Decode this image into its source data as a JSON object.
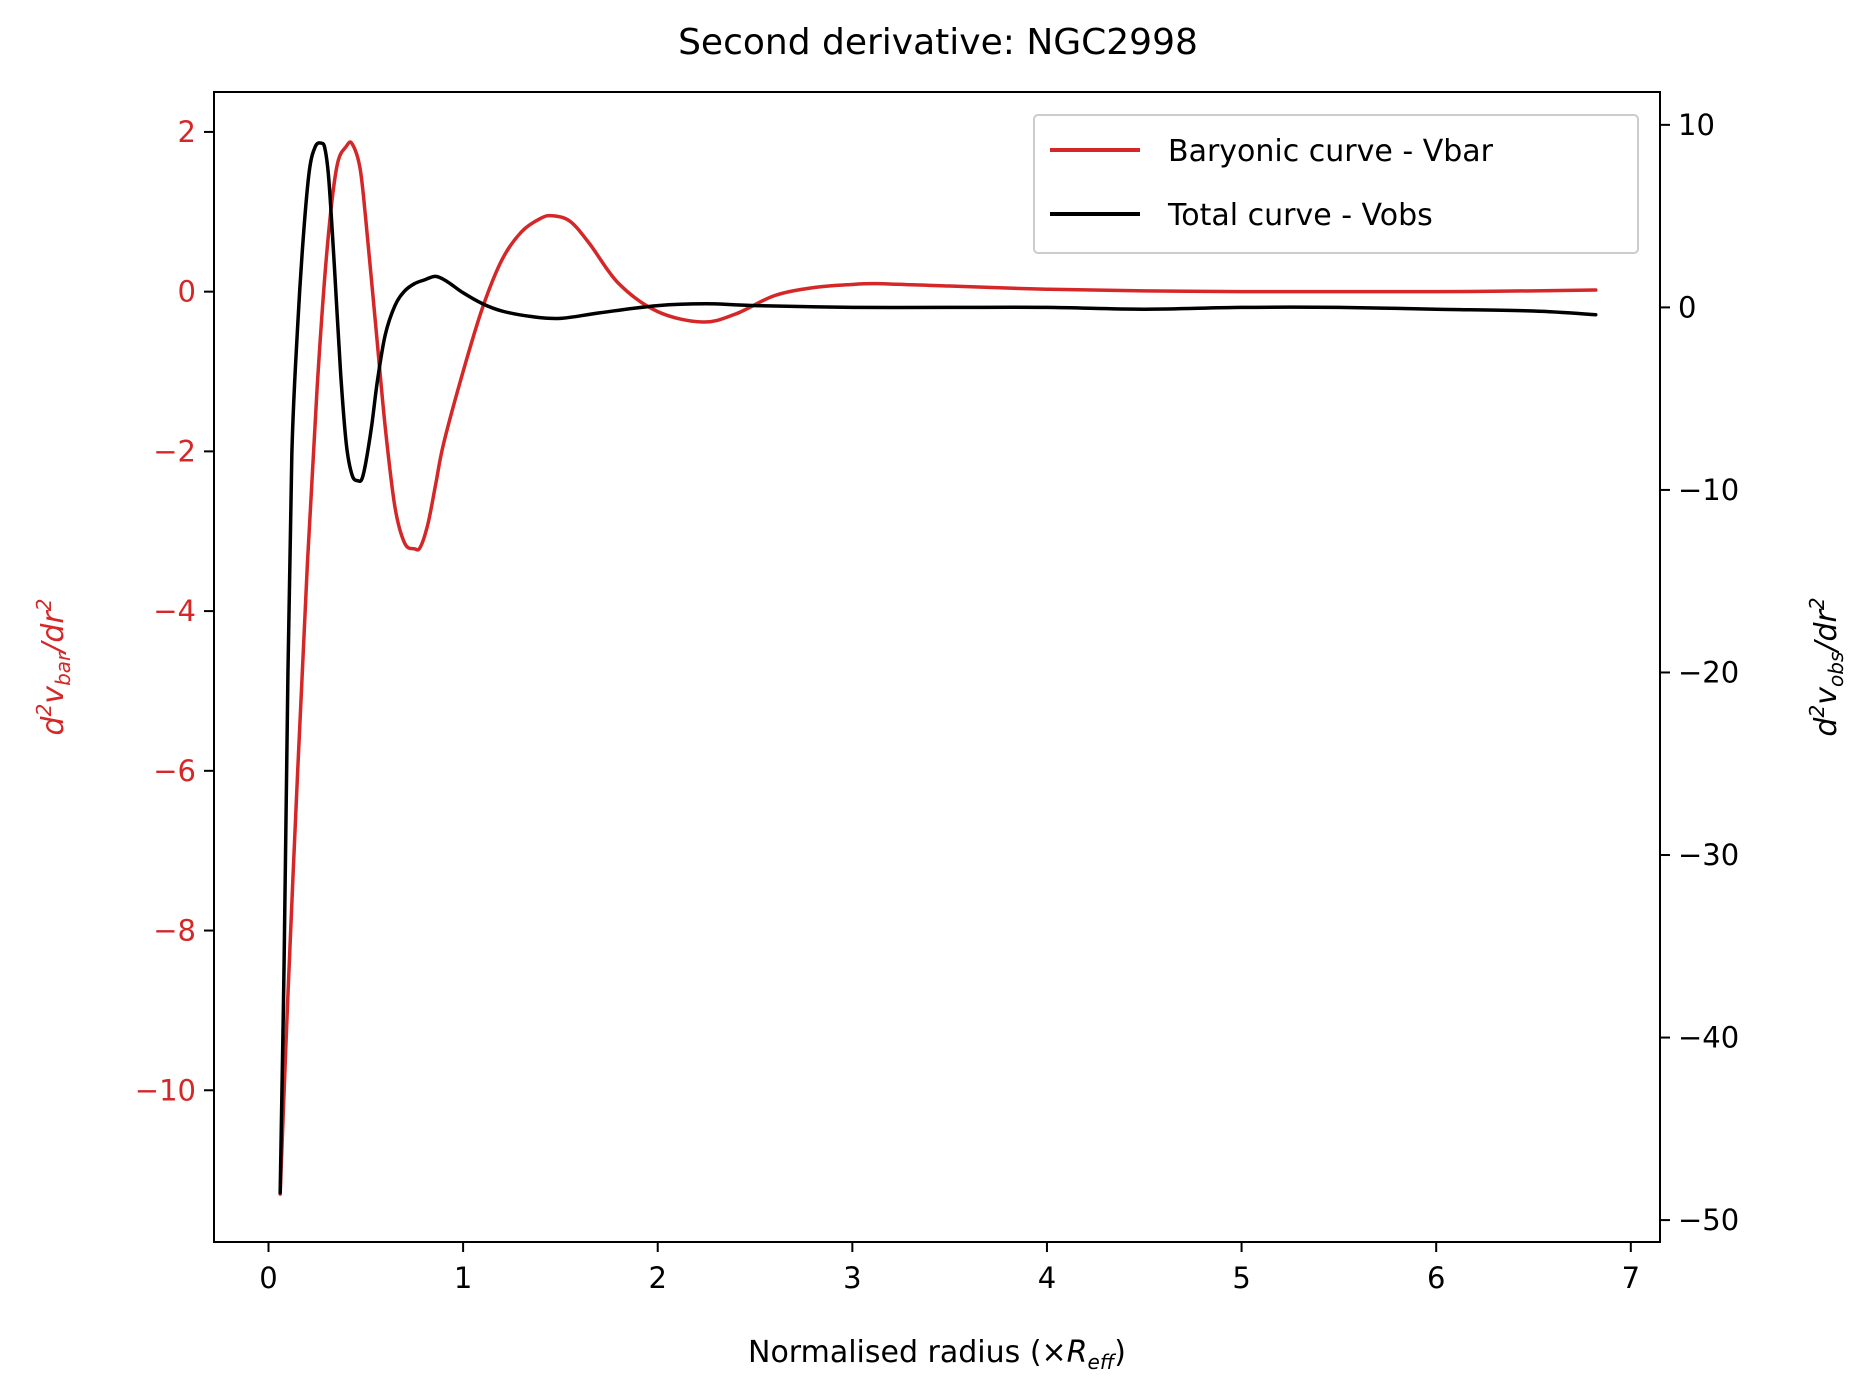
{
  "chart_data": {
    "type": "line",
    "title": "Second derivative: NGC2998",
    "xlabel": "Normalised radius (×R_eff)",
    "ylabel_left": "d²v_bar/dr²",
    "ylabel_right": "d²v_obs/dr²",
    "xlim": [
      -0.28,
      7.15
    ],
    "ylim_left": [
      -11.9,
      2.5
    ],
    "ylim_right": [
      -51.2,
      11.8
    ],
    "grid": false,
    "legend_position": "top-right",
    "x_ticks": [
      0,
      1,
      2,
      3,
      4,
      5,
      6,
      7
    ],
    "x_tick_labels": [
      "0",
      "1",
      "2",
      "3",
      "4",
      "5",
      "6",
      "7"
    ],
    "y_left_ticks": [
      2,
      0,
      -2,
      -4,
      -6,
      -8,
      -10
    ],
    "y_left_tick_labels": [
      "2",
      "0",
      "−2",
      "−4",
      "−6",
      "−8",
      "−10"
    ],
    "y_right_ticks": [
      10,
      0,
      -10,
      -20,
      -30,
      -40,
      -50
    ],
    "y_right_tick_labels": [
      "10",
      "0",
      "−10",
      "−20",
      "−30",
      "−40",
      "−50"
    ],
    "series": [
      {
        "name": "Baryonic curve - Vbar",
        "axis": "left",
        "color": "#d62728",
        "x": [
          0.06,
          0.1,
          0.15,
          0.2,
          0.25,
          0.3,
          0.35,
          0.4,
          0.43,
          0.47,
          0.5,
          0.55,
          0.6,
          0.65,
          0.7,
          0.75,
          0.78,
          0.82,
          0.86,
          0.9,
          1.0,
          1.1,
          1.2,
          1.3,
          1.4,
          1.46,
          1.55,
          1.65,
          1.8,
          2.0,
          2.23,
          2.4,
          2.6,
          2.8,
          3.0,
          3.13,
          3.5,
          4.0,
          4.5,
          5.0,
          5.5,
          6.0,
          6.5,
          6.82
        ],
        "y": [
          -11.3,
          -8.8,
          -6.0,
          -3.4,
          -1.2,
          0.5,
          1.55,
          1.82,
          1.85,
          1.55,
          0.9,
          -0.4,
          -1.7,
          -2.7,
          -3.15,
          -3.22,
          -3.2,
          -2.9,
          -2.4,
          -1.9,
          -1.0,
          -0.2,
          0.4,
          0.75,
          0.92,
          0.95,
          0.88,
          0.6,
          0.1,
          -0.25,
          -0.38,
          -0.28,
          -0.05,
          0.05,
          0.09,
          0.1,
          0.07,
          0.03,
          0.01,
          0.0,
          0.0,
          0.0,
          0.01,
          0.02
        ]
      },
      {
        "name": "Total curve - Vobs",
        "axis": "right",
        "color": "#000000",
        "x": [
          0.06,
          0.08,
          0.1,
          0.12,
          0.15,
          0.18,
          0.21,
          0.24,
          0.27,
          0.29,
          0.31,
          0.34,
          0.37,
          0.4,
          0.43,
          0.46,
          0.48,
          0.5,
          0.53,
          0.56,
          0.6,
          0.65,
          0.7,
          0.75,
          0.8,
          0.86,
          0.92,
          1.0,
          1.1,
          1.2,
          1.35,
          1.5,
          1.7,
          2.0,
          2.25,
          2.5,
          3.0,
          3.5,
          4.0,
          4.5,
          5.0,
          5.5,
          6.0,
          6.5,
          6.82
        ],
        "y": [
          -48.5,
          -36.0,
          -20.0,
          -8.0,
          -1.0,
          4.0,
          7.5,
          8.8,
          9.0,
          8.7,
          7.0,
          2.0,
          -3.5,
          -7.5,
          -9.2,
          -9.5,
          -9.4,
          -8.5,
          -6.5,
          -4.0,
          -1.5,
          0.1,
          0.9,
          1.3,
          1.5,
          1.7,
          1.4,
          0.8,
          0.2,
          -0.2,
          -0.5,
          -0.6,
          -0.3,
          0.1,
          0.2,
          0.1,
          0.0,
          0.0,
          0.0,
          -0.1,
          0.0,
          0.0,
          -0.1,
          -0.2,
          -0.4
        ]
      }
    ]
  }
}
